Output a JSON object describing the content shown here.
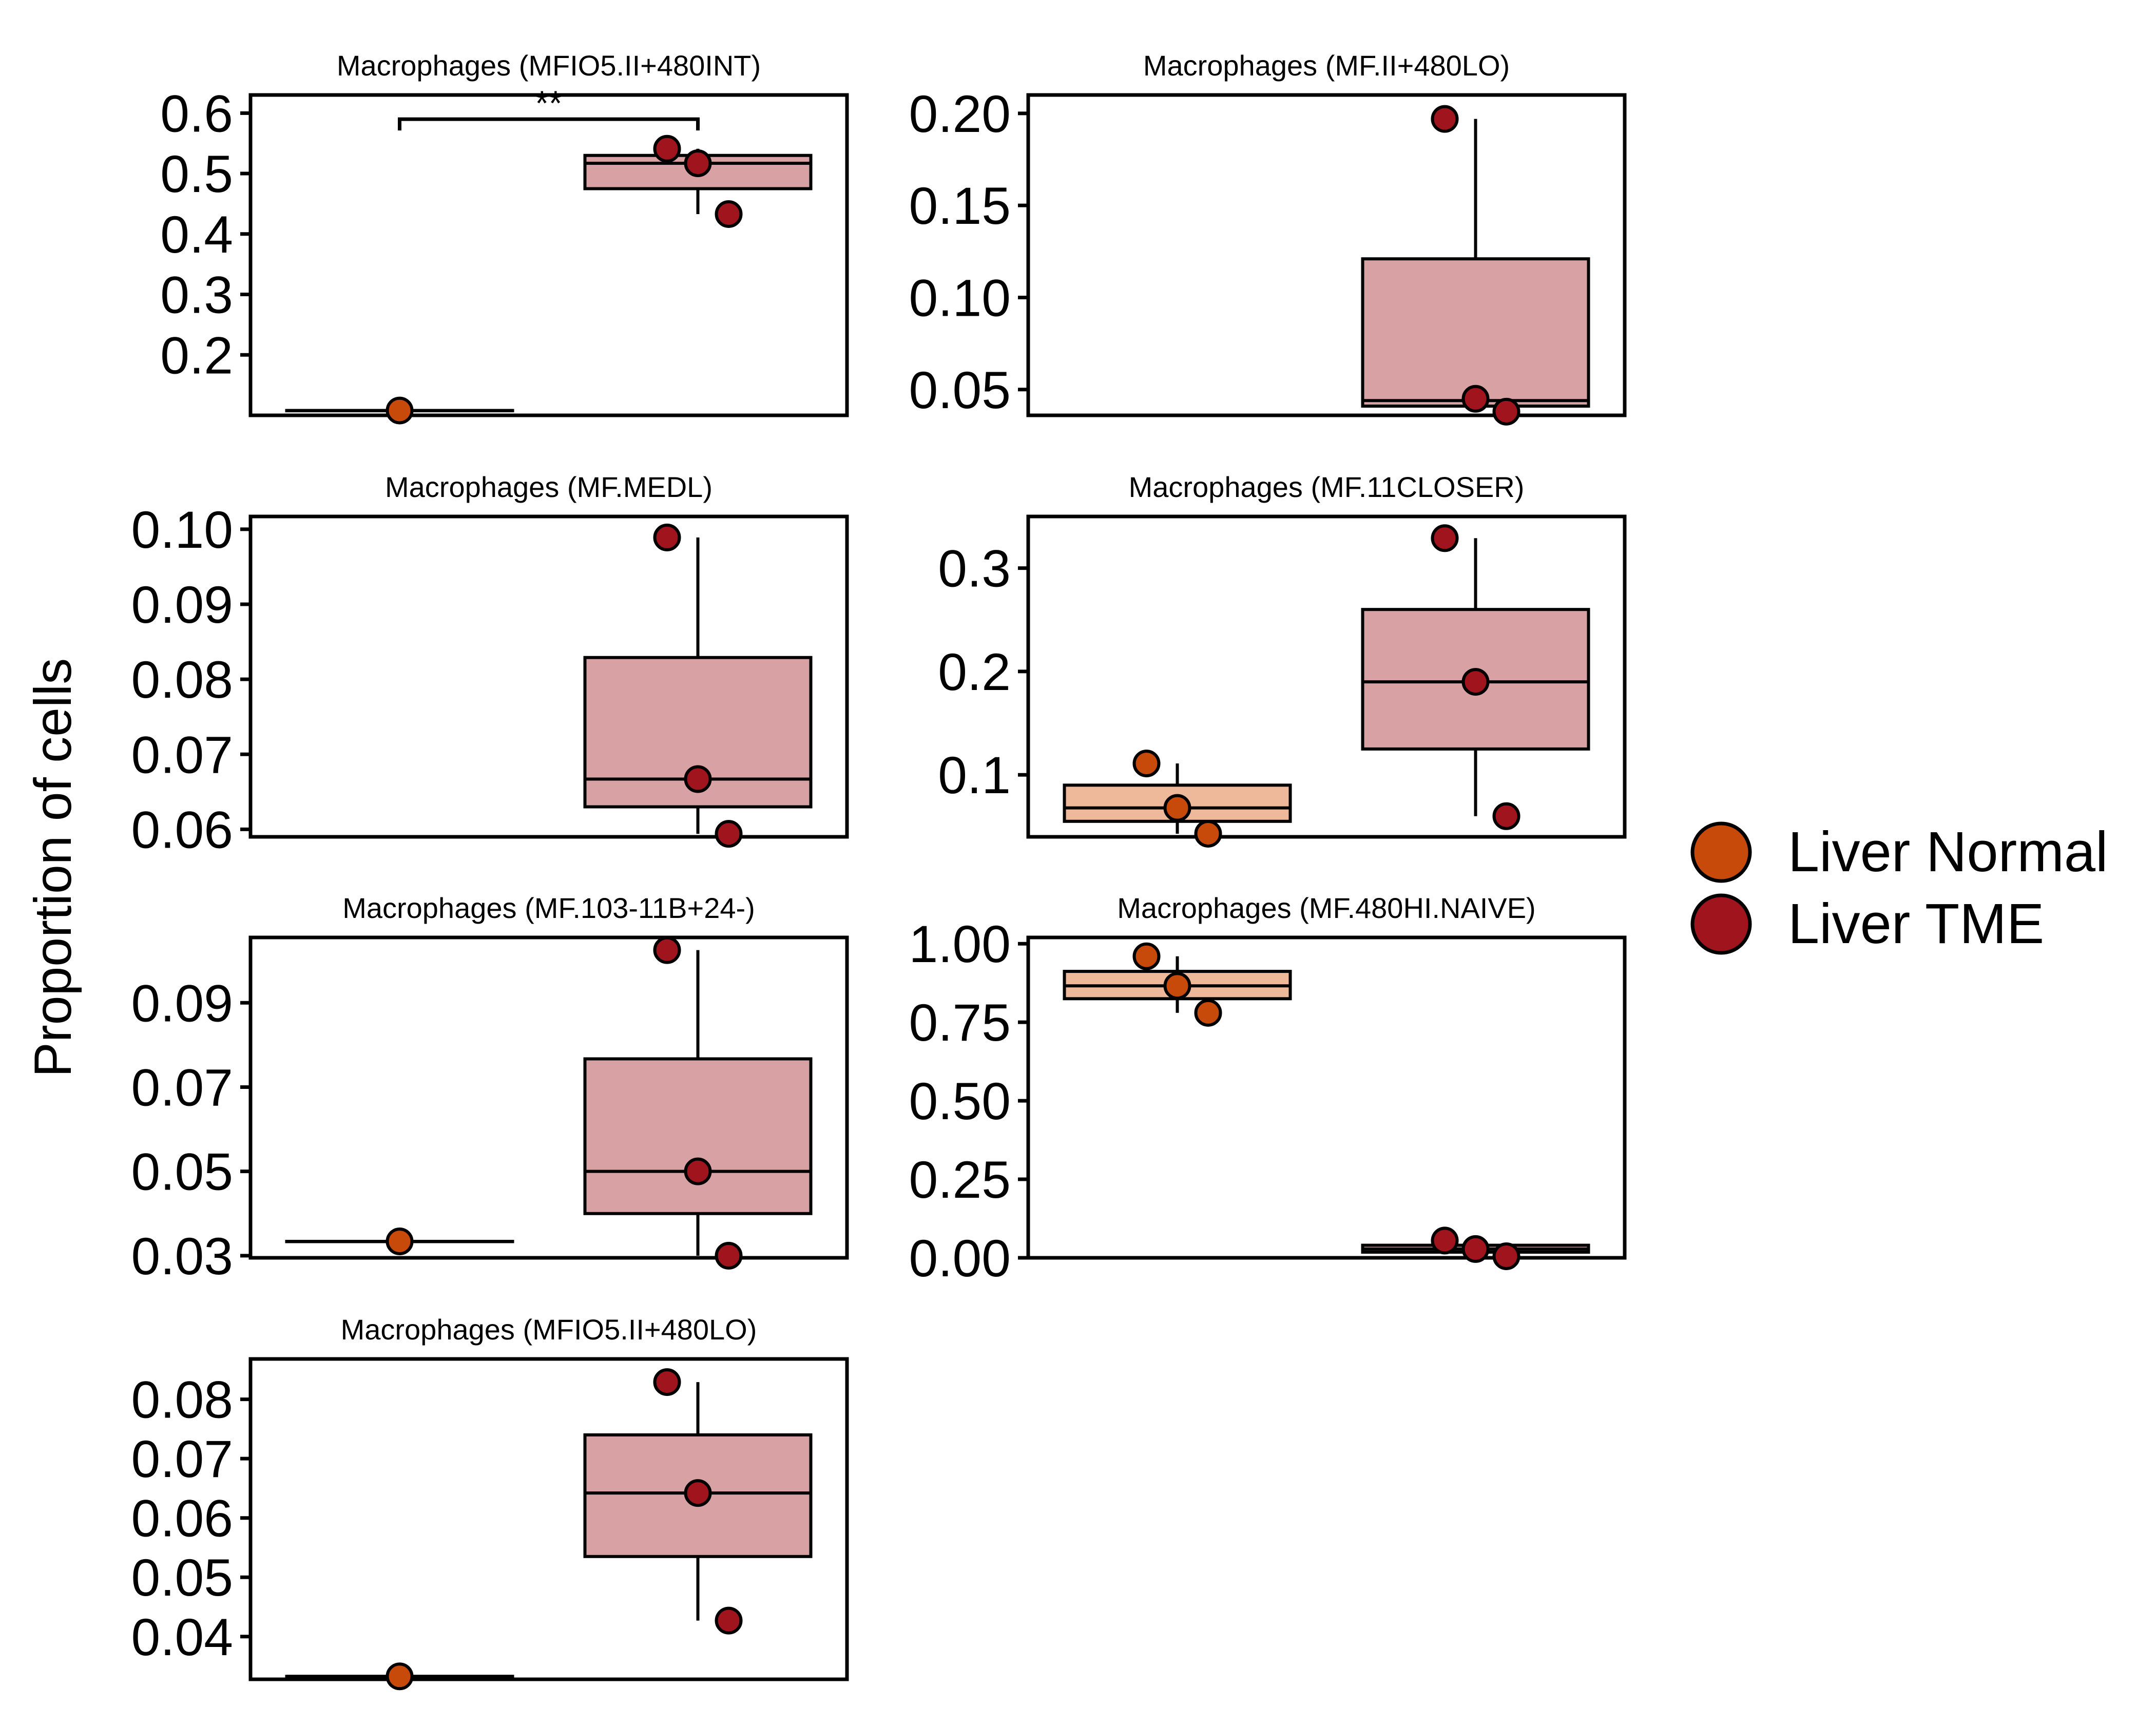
{
  "figure": {
    "ylabel": "Proportion of cells",
    "legend": {
      "placement": "right",
      "entries": [
        {
          "name": "Liver Normal",
          "color": "#C84A0A"
        },
        {
          "name": "Liver TME",
          "color": "#A0141E"
        }
      ]
    },
    "colors": {
      "normal_point": "#C84A0A",
      "tme_point": "#A0141E",
      "normal_box_fill": "#EEB99B",
      "tme_box_fill": "#D8A2A5"
    }
  },
  "chart_data": [
    {
      "type": "box",
      "title": "Macrophages (MFIO5.II+480INT)",
      "categories": [
        "Liver Normal",
        "Liver TME"
      ],
      "ylim": [
        0.1,
        0.63
      ],
      "yticks": [
        0.2,
        0.3,
        0.4,
        0.5,
        0.6
      ],
      "tick_labels": [
        "0.2",
        "0.3",
        "0.4",
        "0.5",
        "0.6"
      ],
      "groups": [
        {
          "name": "Liver Normal",
          "q1": 0.108,
          "median": 0.108,
          "q3": 0.108,
          "whisker_low": 0.108,
          "whisker_high": 0.108,
          "points": [
            0.108
          ]
        },
        {
          "name": "Liver TME",
          "q1": 0.475,
          "median": 0.517,
          "q3": 0.53,
          "whisker_low": 0.433,
          "whisker_high": 0.541,
          "points": [
            0.541,
            0.517,
            0.433
          ]
        }
      ],
      "significance": {
        "label": "**",
        "y": 0.59
      }
    },
    {
      "type": "box",
      "title": "Macrophages (MF.II+480LO)",
      "categories": [
        "Liver Normal",
        "Liver TME"
      ],
      "ylim": [
        0.036,
        0.21
      ],
      "yticks": [
        0.05,
        0.1,
        0.15,
        0.2
      ],
      "tick_labels": [
        "0.05",
        "0.10",
        "0.15",
        "0.20"
      ],
      "groups": [
        {
          "name": "Liver TME",
          "q1": 0.041,
          "median": 0.044,
          "q3": 0.121,
          "whisker_low": 0.038,
          "whisker_high": 0.197,
          "points": [
            0.197,
            0.045,
            0.038
          ]
        }
      ]
    },
    {
      "type": "box",
      "title": "Macrophages (MF.MEDL)",
      "categories": [
        "Liver Normal",
        "Liver TME"
      ],
      "ylim": [
        0.059,
        0.1017
      ],
      "yticks": [
        0.06,
        0.07,
        0.08,
        0.09,
        0.1
      ],
      "tick_labels": [
        "0.06",
        "0.07",
        "0.08",
        "0.09",
        "0.10"
      ],
      "groups": [
        {
          "name": "Liver TME",
          "q1": 0.063,
          "median": 0.0667,
          "q3": 0.0829,
          "whisker_low": 0.0594,
          "whisker_high": 0.0989,
          "points": [
            0.0989,
            0.0667,
            0.0594
          ]
        }
      ]
    },
    {
      "type": "box",
      "title": "Macrophages (MF.11CLOSER)",
      "categories": [
        "Liver Normal",
        "Liver TME"
      ],
      "ylim": [
        0.04,
        0.35
      ],
      "yticks": [
        0.1,
        0.2,
        0.3
      ],
      "tick_labels": [
        "0.1",
        "0.2",
        "0.3"
      ],
      "groups": [
        {
          "name": "Liver Normal",
          "q1": 0.055,
          "median": 0.068,
          "q3": 0.09,
          "whisker_low": 0.043,
          "whisker_high": 0.111,
          "points": [
            0.111,
            0.068,
            0.043
          ]
        },
        {
          "name": "Liver TME",
          "q1": 0.125,
          "median": 0.19,
          "q3": 0.26,
          "whisker_low": 0.06,
          "whisker_high": 0.329,
          "points": [
            0.329,
            0.19,
            0.06
          ]
        }
      ]
    },
    {
      "type": "box",
      "title": "Macrophages (MF.103-11B+24-)",
      "categories": [
        "Liver Normal",
        "Liver TME"
      ],
      "ylim": [
        0.0295,
        0.1055
      ],
      "yticks": [
        0.03,
        0.05,
        0.07,
        0.09
      ],
      "tick_labels": [
        "0.03",
        "0.05",
        "0.07",
        "0.09"
      ],
      "groups": [
        {
          "name": "Liver Normal",
          "q1": 0.0334,
          "median": 0.0334,
          "q3": 0.0334,
          "whisker_low": 0.0334,
          "whisker_high": 0.0334,
          "points": [
            0.0334
          ]
        },
        {
          "name": "Liver TME",
          "q1": 0.04,
          "median": 0.05,
          "q3": 0.0767,
          "whisker_low": 0.03,
          "whisker_high": 0.1025,
          "points": [
            0.1025,
            0.05,
            0.03
          ]
        }
      ]
    },
    {
      "type": "box",
      "title": "Macrophages (MF.480HI.NAIVE)",
      "categories": [
        "Liver Normal",
        "Liver TME"
      ],
      "ylim": [
        0.0,
        1.02
      ],
      "yticks": [
        0.0,
        0.25,
        0.5,
        0.75,
        1.0
      ],
      "tick_labels": [
        "0.00",
        "0.25",
        "0.50",
        "0.75",
        "1.00"
      ],
      "groups": [
        {
          "name": "Liver Normal",
          "q1": 0.825,
          "median": 0.866,
          "q3": 0.912,
          "whisker_low": 0.78,
          "whisker_high": 0.96,
          "points": [
            0.96,
            0.866,
            0.78
          ]
        },
        {
          "name": "Liver TME",
          "q1": 0.018,
          "median": 0.028,
          "q3": 0.04,
          "whisker_low": 0.005,
          "whisker_high": 0.055,
          "points": [
            0.055,
            0.028,
            0.005
          ]
        }
      ]
    },
    {
      "type": "box",
      "title": "Macrophages (MFIO5.II+480LO)",
      "categories": [
        "Liver Normal",
        "Liver TME"
      ],
      "ylim": [
        0.0328,
        0.0868
      ],
      "yticks": [
        0.04,
        0.05,
        0.06,
        0.07,
        0.08
      ],
      "tick_labels": [
        "0.04",
        "0.05",
        "0.06",
        "0.07",
        "0.08"
      ],
      "groups": [
        {
          "name": "Liver Normal",
          "q1": 0.0333,
          "median": 0.0333,
          "q3": 0.0333,
          "whisker_low": 0.0333,
          "whisker_high": 0.0333,
          "points": [
            0.0333
          ]
        },
        {
          "name": "Liver TME",
          "q1": 0.0535,
          "median": 0.0642,
          "q3": 0.074,
          "whisker_low": 0.0427,
          "whisker_high": 0.0829,
          "points": [
            0.0829,
            0.0642,
            0.0427
          ]
        }
      ]
    }
  ]
}
